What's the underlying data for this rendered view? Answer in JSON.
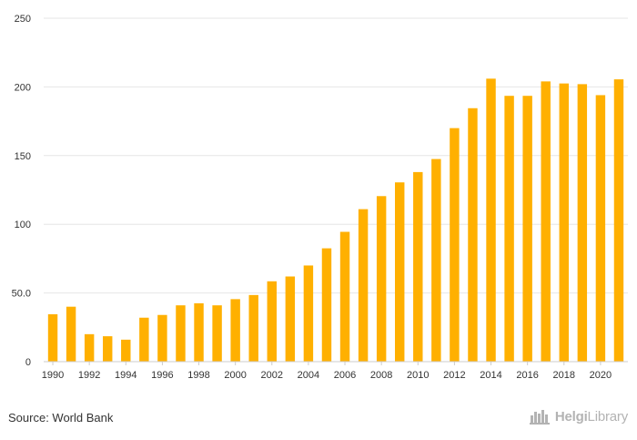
{
  "chart_data": {
    "type": "bar",
    "title": "",
    "xlabel": "",
    "ylabel": "",
    "categories": [
      "1990",
      "1991",
      "1992",
      "1993",
      "1994",
      "1995",
      "1996",
      "1997",
      "1998",
      "1999",
      "2000",
      "2001",
      "2002",
      "2003",
      "2004",
      "2005",
      "2006",
      "2007",
      "2008",
      "2009",
      "2010",
      "2011",
      "2012",
      "2013",
      "2014",
      "2015",
      "2016",
      "2017",
      "2018",
      "2019",
      "2020",
      "2021"
    ],
    "values": [
      34.5,
      40,
      20,
      18.5,
      16,
      32,
      34,
      41,
      42.5,
      41,
      45.5,
      48.5,
      58.5,
      62,
      70,
      82.5,
      94.5,
      111,
      120.5,
      130.5,
      138,
      147.5,
      170,
      184.5,
      206,
      193.5,
      193.5,
      204,
      202.5,
      202,
      194,
      205.5
    ],
    "x_tick_labels": [
      "1990",
      "1992",
      "1994",
      "1996",
      "1998",
      "2000",
      "2002",
      "2004",
      "2006",
      "2008",
      "2010",
      "2012",
      "2014",
      "2016",
      "2018",
      "2020"
    ],
    "y_tick_labels": [
      "0",
      "50.0",
      "100",
      "150",
      "200",
      "250"
    ],
    "y_ticks": [
      0,
      50,
      100,
      150,
      200,
      250
    ],
    "ylim": [
      0,
      250
    ],
    "grid": true,
    "bar_color": "#FFB000"
  },
  "footer": {
    "source": "Source: World Bank",
    "logo_bold": "Helgi",
    "logo_thin": "Library"
  },
  "colors": {
    "bar": "#FFB000",
    "grid": "#e6e6e6",
    "axis": "#cccccc",
    "text": "#333333",
    "logo": "#b3b3b3"
  }
}
